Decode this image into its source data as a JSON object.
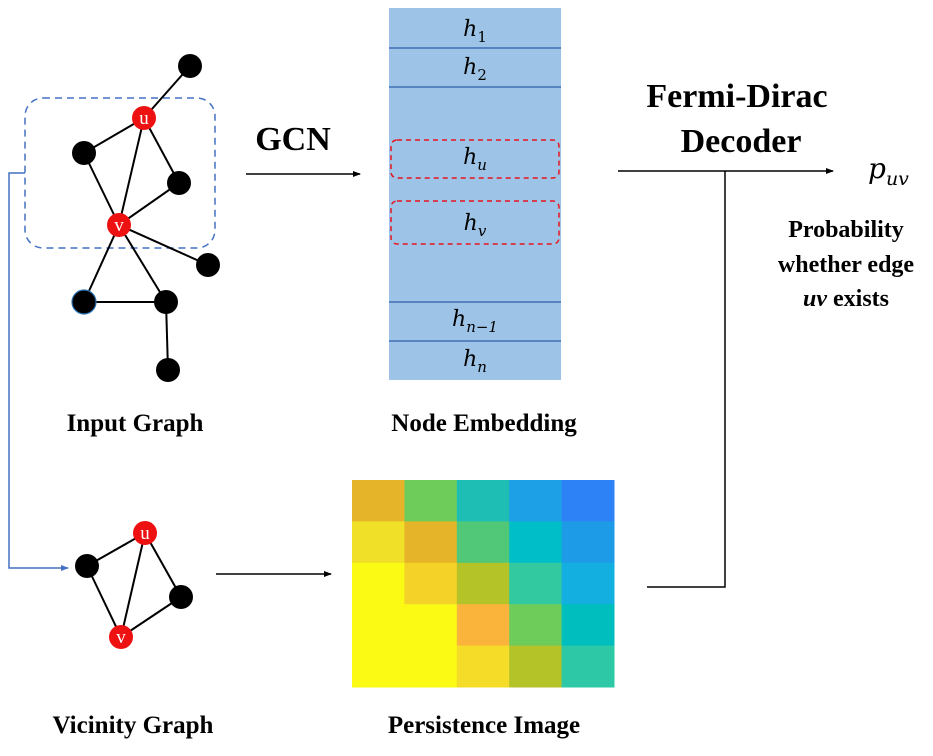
{
  "labels": {
    "input_graph": "Input Graph",
    "node_embedding": "Node Embedding",
    "vicinity_graph": "Vicinity Graph",
    "persistence_image": "Persistence Image",
    "gcn": "GCN",
    "decoder_line1": "Fermi-Dirac",
    "decoder_line2": "Decoder",
    "output_symbol": "p",
    "output_subscript": "uv",
    "prob_line1": "Probability",
    "prob_line2": "whether edge",
    "prob_line3_var": "uv",
    "prob_line3_rest": " exists"
  },
  "node_labels": {
    "u": "u",
    "v": "v"
  },
  "embedding_rows": [
    {
      "base": "h",
      "sub": "1"
    },
    {
      "base": "h",
      "sub": "2"
    },
    {
      "base": "h",
      "sub": "u"
    },
    {
      "base": "h",
      "sub": "v"
    },
    {
      "base": "h",
      "sub": "n−1"
    },
    {
      "base": "h",
      "sub": "n"
    }
  ],
  "persistence_image_grid": [
    [
      "#e6b428",
      "#6ecd5a",
      "#1ebeb4",
      "#1ea0e6",
      "#2d82f5"
    ],
    [
      "#f0e128",
      "#e6b428",
      "#50c878",
      "#00bec8",
      "#1e9be6"
    ],
    [
      "#fafa14",
      "#f5d228",
      "#b4c328",
      "#32c8a0",
      "#14afe1"
    ],
    [
      "#fafa14",
      "#fafa14",
      "#fab43c",
      "#6ecd5a",
      "#00bebe"
    ],
    [
      "#fafa14",
      "#fafa14",
      "#f5dc28",
      "#b4c328",
      "#2dc8a5"
    ]
  ],
  "colors": {
    "embedding_fill": "#9dc3e6",
    "embedding_divider": "#2e5faa",
    "highlight_dash": "#e8141e",
    "vicinity_dash": "#4472c4",
    "connector": "#4472c4",
    "node_fill": "#000000",
    "special_node_fill": "#ee1111"
  }
}
